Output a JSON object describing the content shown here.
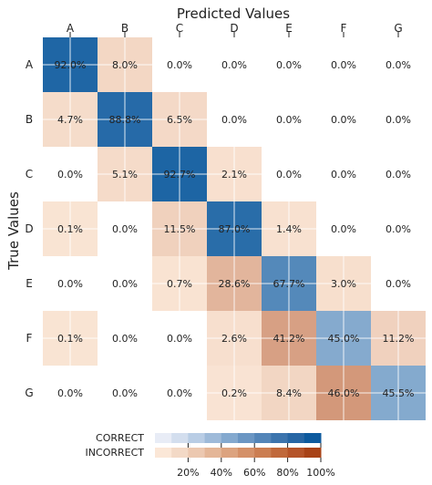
{
  "chart_data": {
    "type": "heatmap",
    "title": "Predicted Values",
    "xlabel": "",
    "ylabel": "True Values",
    "x_categories": [
      "A",
      "B",
      "C",
      "D",
      "E",
      "F",
      "G"
    ],
    "y_categories": [
      "A",
      "B",
      "C",
      "D",
      "E",
      "F",
      "G"
    ],
    "values": [
      [
        92.0,
        8.0,
        0.0,
        0.0,
        0.0,
        0.0,
        0.0
      ],
      [
        4.7,
        88.8,
        6.5,
        0.0,
        0.0,
        0.0,
        0.0
      ],
      [
        0.0,
        5.1,
        92.7,
        2.1,
        0.0,
        0.0,
        0.0
      ],
      [
        0.1,
        0.0,
        11.5,
        87.0,
        1.4,
        0.0,
        0.0
      ],
      [
        0.0,
        0.0,
        0.7,
        28.6,
        67.7,
        3.0,
        0.0
      ],
      [
        0.1,
        0.0,
        0.0,
        2.6,
        41.2,
        45.0,
        11.2
      ],
      [
        0.0,
        0.0,
        0.0,
        0.2,
        8.4,
        46.0,
        45.5
      ]
    ],
    "labels": [
      [
        "92.0%",
        "8.0%",
        "0.0%",
        "0.0%",
        "0.0%",
        "0.0%",
        "0.0%"
      ],
      [
        "4.7%",
        "88.8%",
        "6.5%",
        "0.0%",
        "0.0%",
        "0.0%",
        "0.0%"
      ],
      [
        "0.0%",
        "5.1%",
        "92.7%",
        "2.1%",
        "0.0%",
        "0.0%",
        "0.0%"
      ],
      [
        "0.1%",
        "0.0%",
        "11.5%",
        "87.0%",
        "1.4%",
        "0.0%",
        "0.0%"
      ],
      [
        "0.0%",
        "0.0%",
        "0.7%",
        "28.6%",
        "67.7%",
        "3.0%",
        "0.0%"
      ],
      [
        "0.1%",
        "0.0%",
        "0.0%",
        "2.6%",
        "41.2%",
        "45.0%",
        "11.2%"
      ],
      [
        "0.0%",
        "0.0%",
        "0.0%",
        "0.2%",
        "8.4%",
        "46.0%",
        "45.5%"
      ]
    ],
    "colorbar": {
      "correct_label": "CORRECT",
      "incorrect_label": "INCORRECT",
      "ticks": [
        "20%",
        "40%",
        "60%",
        "80%",
        "100%"
      ],
      "correct_colors": [
        "#e8ecf6",
        "#d3deee",
        "#b9cde5",
        "#9ebad9",
        "#84a9cf",
        "#6b96c3",
        "#5385b8",
        "#3c74ad",
        "#2766a4",
        "#0d5a9e"
      ],
      "incorrect_colors": [
        "#fbe7d7",
        "#f3d9c6",
        "#ecc8b0",
        "#e4b697",
        "#dca37f",
        "#d49068",
        "#cb7d51",
        "#c0683a",
        "#b55328",
        "#a84216"
      ]
    },
    "colors": {
      "correct_scale": [
        "#e8ecf6",
        "#0d5a9e"
      ],
      "incorrect_scale": [
        "#fbe7d7",
        "#a84216"
      ],
      "text": "#222222",
      "diagonal_text": "#f0f0f0"
    }
  }
}
